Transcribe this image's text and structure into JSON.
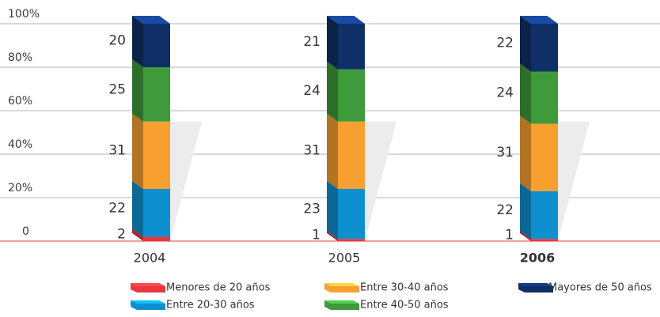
{
  "chart_data": {
    "type": "bar",
    "stacked": true,
    "categories": [
      "2004",
      "2005",
      "2006"
    ],
    "series": [
      {
        "name": "Menores de 20 años",
        "color": "#e8383d",
        "values": [
          2,
          1,
          1
        ]
      },
      {
        "name": "Entre 20-30 años",
        "color": "#0e8fd0",
        "values": [
          22,
          23,
          22
        ]
      },
      {
        "name": "Entre 30-40 años",
        "color": "#f7a030",
        "values": [
          31,
          31,
          31
        ]
      },
      {
        "name": "Entre 40-50 años",
        "color": "#3f9a3b",
        "values": [
          25,
          24,
          24
        ]
      },
      {
        "name": "Mayores de 50 años",
        "color": "#0f2f66",
        "values": [
          20,
          21,
          22
        ]
      }
    ],
    "ylim": [
      0,
      100
    ],
    "yticks": [
      0,
      {
        "value": 20,
        "label": "20%"
      },
      {
        "value": 40,
        "label": "40%"
      },
      {
        "value": 60,
        "label": "60%"
      },
      {
        "value": 80,
        "label": "80%"
      },
      {
        "value": 100,
        "label": "100%"
      }
    ],
    "grid": true
  }
}
